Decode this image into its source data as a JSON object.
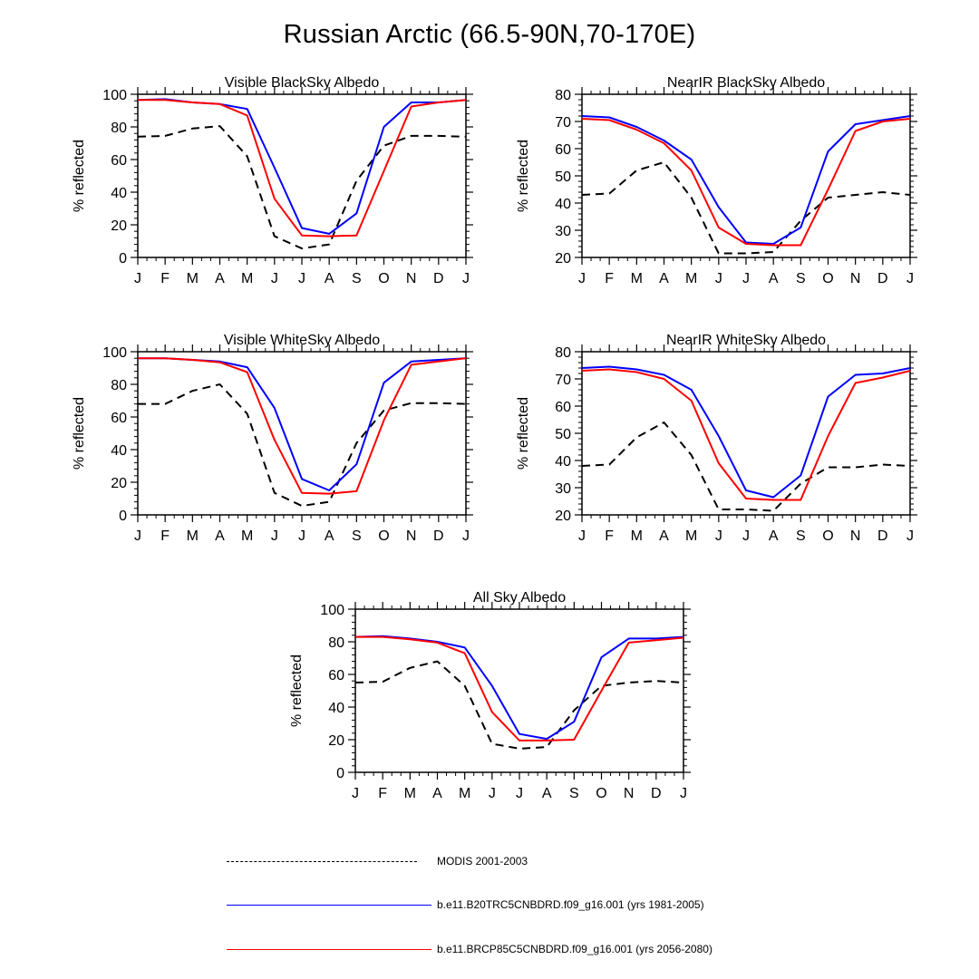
{
  "title": "Russian Arctic (66.5-90N,70-170E)",
  "colors": {
    "modis": "#000000",
    "b20": "#0000ff",
    "rcp85": "#ff0000"
  },
  "chart_data": [
    {
      "type": "line",
      "title": "Visible BlackSky Albedo",
      "ylabel": "% reflected",
      "xlabel": "",
      "categories": [
        "J",
        "F",
        "M",
        "A",
        "M",
        "J",
        "J",
        "A",
        "S",
        "O",
        "N",
        "D",
        "J"
      ],
      "ylim": [
        0,
        100
      ],
      "yticks": [
        "0",
        "20",
        "40",
        "60",
        "80",
        "100"
      ],
      "series": [
        {
          "name": "MODIS 2001-2003",
          "values": [
            74,
            74.5,
            79,
            80.5,
            62,
            13,
            5.5,
            8,
            47,
            68.5,
            74.5,
            74.5,
            74
          ]
        },
        {
          "name": "b.e11.B20TRC5CNBDRD.f09_g16.001 (yrs 1981-2005)",
          "values": [
            96.5,
            97,
            95,
            94,
            91,
            55,
            18,
            14.5,
            27,
            80,
            95,
            95,
            96.5
          ]
        },
        {
          "name": "b.e11.BRCP85C5CNBDRD.f09_g16.001 (yrs 2056-2080)",
          "values": [
            96.5,
            96.5,
            95,
            94,
            87,
            36,
            13.5,
            13,
            13.5,
            53,
            92.5,
            95,
            96.5
          ]
        }
      ]
    },
    {
      "type": "line",
      "title": "NearIR BlackSky Albedo",
      "ylabel": "% reflected",
      "xlabel": "",
      "categories": [
        "J",
        "F",
        "M",
        "A",
        "M",
        "J",
        "J",
        "A",
        "S",
        "O",
        "N",
        "D",
        "J"
      ],
      "ylim": [
        20,
        80
      ],
      "yticks": [
        "20",
        "30",
        "40",
        "50",
        "60",
        "70",
        "80"
      ],
      "series": [
        {
          "name": "MODIS 2001-2003",
          "values": [
            43,
            43.5,
            52,
            55,
            42,
            21.5,
            21.5,
            22,
            33.5,
            42,
            43,
            44,
            43
          ]
        },
        {
          "name": "b.e11.B20TRC5CNBDRD.f09_g16.001 (yrs 1981-2005)",
          "values": [
            72,
            71.5,
            68,
            63,
            56,
            38.5,
            25.5,
            25,
            31,
            59,
            69,
            70.5,
            72
          ]
        },
        {
          "name": "b.e11.BRCP85C5CNBDRD.f09_g16.001 (yrs 2056-2080)",
          "values": [
            71,
            70.5,
            67,
            62,
            52,
            31,
            25,
            24.5,
            24.5,
            45,
            66.5,
            70,
            71
          ]
        }
      ]
    },
    {
      "type": "line",
      "title": "Visible WhiteSky Albedo",
      "ylabel": "% reflected",
      "xlabel": "",
      "categories": [
        "J",
        "F",
        "M",
        "A",
        "M",
        "J",
        "J",
        "A",
        "S",
        "O",
        "N",
        "D",
        "J"
      ],
      "ylim": [
        0,
        100
      ],
      "yticks": [
        "0",
        "20",
        "40",
        "60",
        "80",
        "100"
      ],
      "series": [
        {
          "name": "MODIS 2001-2003",
          "values": [
            68,
            68,
            76,
            80,
            62,
            13.5,
            5.5,
            8,
            44,
            64,
            68.5,
            68.5,
            68
          ]
        },
        {
          "name": "b.e11.B20TRC5CNBDRD.f09_g16.001 (yrs 1981-2005)",
          "values": [
            96,
            96,
            95,
            94,
            90.5,
            65.5,
            22,
            15,
            31,
            81,
            94,
            95,
            96
          ]
        },
        {
          "name": "b.e11.BRCP85C5CNBDRD.f09_g16.001 (yrs 2056-2080)",
          "values": [
            96,
            96,
            95,
            93.5,
            87.5,
            46,
            13.5,
            13,
            14.5,
            58,
            92,
            94,
            96
          ]
        }
      ]
    },
    {
      "type": "line",
      "title": "NearIR WhiteSky Albedo",
      "ylabel": "% reflected",
      "xlabel": "",
      "categories": [
        "J",
        "F",
        "M",
        "A",
        "M",
        "J",
        "J",
        "A",
        "S",
        "O",
        "N",
        "D",
        "J"
      ],
      "ylim": [
        20,
        80
      ],
      "yticks": [
        "20",
        "30",
        "40",
        "50",
        "60",
        "70",
        "80"
      ],
      "series": [
        {
          "name": "MODIS 2001-2003",
          "values": [
            38,
            38.5,
            48.5,
            54,
            42,
            22,
            22,
            21.5,
            31.5,
            37.5,
            37.5,
            38.5,
            38
          ]
        },
        {
          "name": "b.e11.B20TRC5CNBDRD.f09_g16.001 (yrs 1981-2005)",
          "values": [
            74,
            74.5,
            73.5,
            71.5,
            66,
            49,
            29,
            26.5,
            34.5,
            63.5,
            71.5,
            72,
            74
          ]
        },
        {
          "name": "b.e11.BRCP85C5CNBDRD.f09_g16.001 (yrs 2056-2080)",
          "values": [
            73,
            73.5,
            72.5,
            70,
            62,
            39,
            26,
            25.5,
            25.5,
            49,
            68.5,
            70.5,
            73
          ]
        }
      ]
    },
    {
      "type": "line",
      "title": "All Sky Albedo",
      "ylabel": "% reflected",
      "xlabel": "",
      "categories": [
        "J",
        "F",
        "M",
        "A",
        "M",
        "J",
        "J",
        "A",
        "S",
        "O",
        "N",
        "D",
        "J"
      ],
      "ylim": [
        0,
        100
      ],
      "yticks": [
        "0",
        "20",
        "40",
        "60",
        "80",
        "100"
      ],
      "series": [
        {
          "name": "MODIS 2001-2003",
          "values": [
            55,
            55.5,
            64,
            68,
            53,
            17.5,
            14.5,
            15.5,
            38,
            53,
            55,
            56,
            55
          ]
        },
        {
          "name": "b.e11.B20TRC5CNBDRD.f09_g16.001 (yrs 1981-2005)",
          "values": [
            83,
            83.5,
            82,
            80,
            76.5,
            53,
            23.5,
            20.5,
            31,
            70.5,
            82,
            82,
            83
          ]
        },
        {
          "name": "b.e11.BRCP85C5CNBDRD.f09_g16.001 (yrs 2056-2080)",
          "values": [
            83,
            83,
            81.5,
            79.5,
            73,
            37,
            19.5,
            19.5,
            20,
            50,
            79.5,
            81,
            82.5
          ]
        }
      ]
    }
  ],
  "legend": [
    {
      "label": "MODIS 2001-2003",
      "style": "dashed",
      "color_key": "modis"
    },
    {
      "label": "b.e11.B20TRC5CNBDRD.f09_g16.001 (yrs 1981-2005)",
      "style": "solid",
      "color_key": "b20"
    },
    {
      "label": "b.e11.BRCP85C5CNBDRD.f09_g16.001 (yrs 2056-2080)",
      "style": "solid",
      "color_key": "rcp85"
    }
  ]
}
